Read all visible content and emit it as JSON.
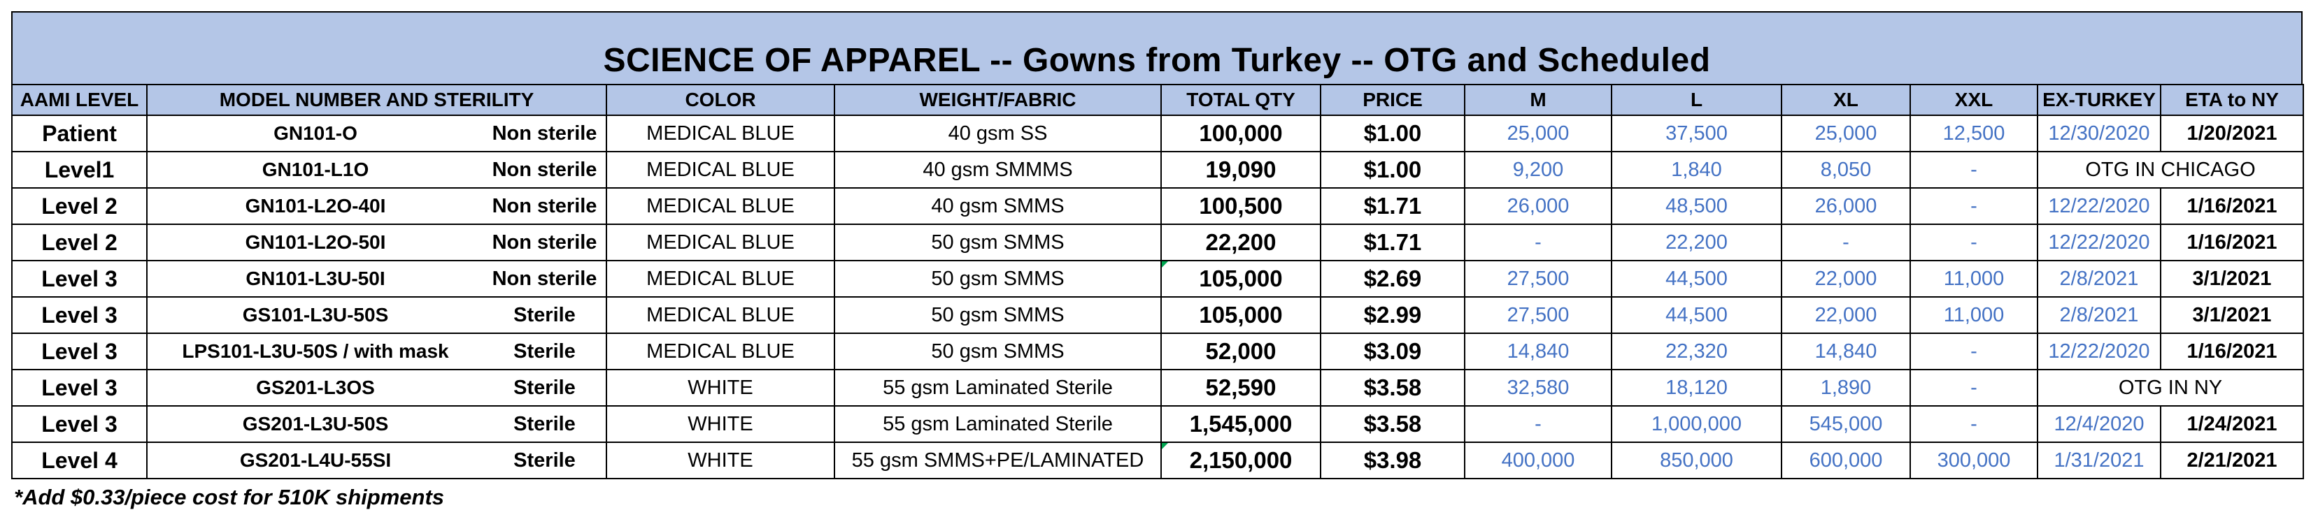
{
  "title": "SCIENCE OF APPAREL -- Gowns from Turkey -- OTG and Scheduled",
  "headers": {
    "aami": "AAMI LEVEL",
    "model": "MODEL NUMBER AND STERILITY",
    "color": "COLOR",
    "weight": "WEIGHT/FABRIC",
    "qty": "TOTAL QTY",
    "price": "PRICE",
    "m": "M",
    "l": "L",
    "xl": "XL",
    "xxl": "XXL",
    "ex": "EX-TURKEY",
    "eta": "ETA to NY"
  },
  "rows": [
    {
      "level": "Patient",
      "model": "GN101-O",
      "sterility": "Non sterile",
      "color": "MEDICAL BLUE",
      "weight": "40 gsm SS",
      "qty": "100,000",
      "price": "$1.00",
      "m": "25,000",
      "l": "37,500",
      "xl": "25,000",
      "xxl": "12,500",
      "ex": "12/30/2020",
      "eta": "1/20/2021"
    },
    {
      "level": "Level1",
      "model": "GN101-L1O",
      "sterility": "Non sterile",
      "color": "MEDICAL BLUE",
      "weight": "40 gsm SMMMS",
      "qty": "19,090",
      "price": "$1.00",
      "m": "9,200",
      "l": "1,840",
      "xl": "8,050",
      "xxl": "-",
      "status": "OTG IN CHICAGO"
    },
    {
      "level": "Level 2",
      "model": "GN101-L2O-40I",
      "sterility": "Non sterile",
      "color": "MEDICAL BLUE",
      "weight": "40 gsm SMMS",
      "qty": "100,500",
      "price": "$1.71",
      "m": "26,000",
      "l": "48,500",
      "xl": "26,000",
      "xxl": "-",
      "ex": "12/22/2020",
      "eta": "1/16/2021"
    },
    {
      "level": "Level 2",
      "model": "GN101-L2O-50I",
      "sterility": "Non sterile",
      "color": "MEDICAL BLUE",
      "weight": "50 gsm SMMS",
      "qty": "22,200",
      "price": "$1.71",
      "m": "-",
      "l": "22,200",
      "xl": "-",
      "xxl": "-",
      "ex": "12/22/2020",
      "eta": "1/16/2021"
    },
    {
      "level": "Level 3",
      "model": "GN101-L3U-50I",
      "sterility": "Non sterile",
      "color": "MEDICAL BLUE",
      "weight": "50 gsm SMMS",
      "qty": "105,000",
      "price": "$2.69",
      "m": "27,500",
      "l": "44,500",
      "xl": "22,000",
      "xxl": "11,000",
      "ex": "2/8/2021",
      "eta": "3/1/2021"
    },
    {
      "level": "Level 3",
      "model": "GS101-L3U-50S",
      "sterility": "Sterile",
      "color": "MEDICAL BLUE",
      "weight": "50 gsm SMMS",
      "qty": "105,000",
      "price": "$2.99",
      "m": "27,500",
      "l": "44,500",
      "xl": "22,000",
      "xxl": "11,000",
      "ex": "2/8/2021",
      "eta": "3/1/2021"
    },
    {
      "level": "Level 3",
      "model": "LPS101-L3U-50S / with mask",
      "sterility": "Sterile",
      "color": "MEDICAL BLUE",
      "weight": "50 gsm SMMS",
      "qty": "52,000",
      "price": "$3.09",
      "m": "14,840",
      "l": "22,320",
      "xl": "14,840",
      "xxl": "-",
      "ex": "12/22/2020",
      "eta": "1/16/2021"
    },
    {
      "level": "Level 3",
      "model": "GS201-L3OS",
      "sterility": "Sterile",
      "color": "WHITE",
      "weight": "55 gsm Laminated Sterile",
      "qty": "52,590",
      "price": "$3.58",
      "m": "32,580",
      "l": "18,120",
      "xl": "1,890",
      "xxl": "-",
      "status": "OTG IN NY"
    },
    {
      "level": "Level 3",
      "model": "GS201-L3U-50S",
      "sterility": "Sterile",
      "color": "WHITE",
      "weight": "55 gsm Laminated Sterile",
      "qty": "1,545,000",
      "price": "$3.58",
      "m": "-",
      "l": "1,000,000",
      "xl": "545,000",
      "xxl": "-",
      "ex": "12/4/2020",
      "eta": "1/24/2021"
    },
    {
      "level": "Level 4",
      "model": "GS201-L4U-55SI",
      "sterility": "Sterile",
      "color": "WHITE",
      "weight": "55 gsm SMMS+PE/LAMINATED",
      "qty": "2,150,000",
      "price": "$3.98",
      "m": "400,000",
      "l": "850,000",
      "xl": "600,000",
      "xxl": "300,000",
      "ex": "1/31/2021",
      "eta": "2/21/2021"
    }
  ],
  "note": "*Add $0.33/piece cost for 510K shipments",
  "colors": {
    "header_bg": "#b4c6e7",
    "value_blue": "#4472c4",
    "comment_marker": "#00a550"
  }
}
